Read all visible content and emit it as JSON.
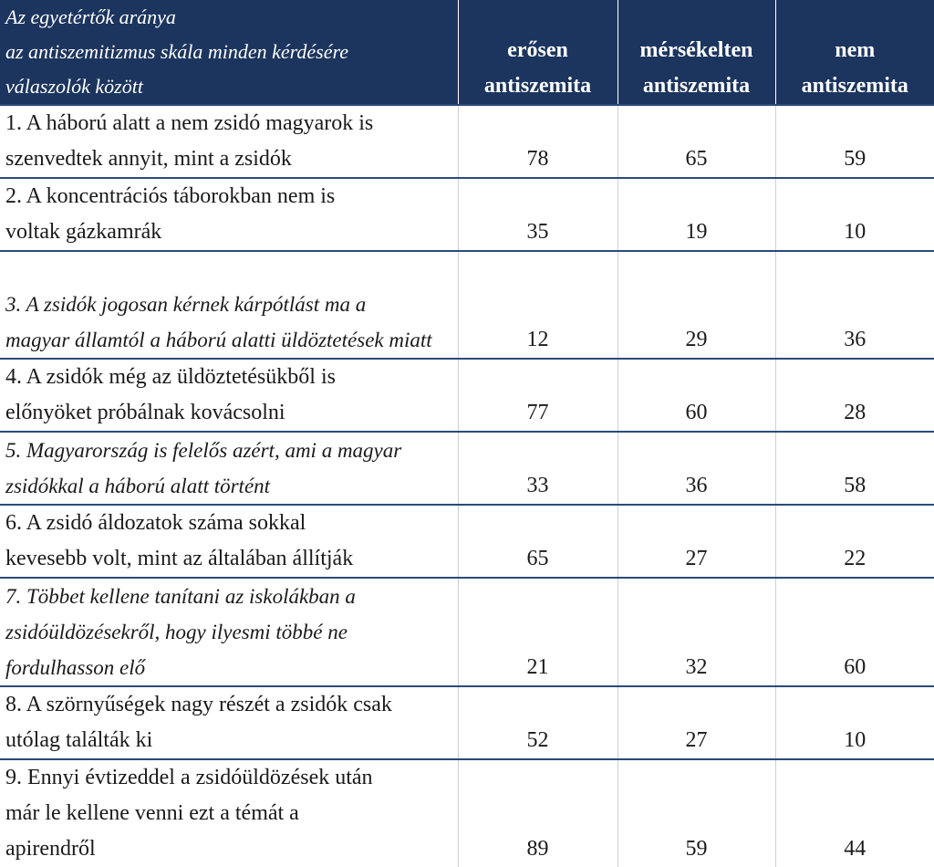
{
  "chart_data": {
    "type": "table",
    "title": "Az egyetértők aránya\naz antiszemitizmus skála minden kérdésére\nválaszolók között",
    "columns": [
      "erősen\nantiszemita",
      "mérsékelten\nantiszemita",
      "nem\nantiszemita"
    ],
    "rows": [
      {
        "label": "1. A háború alatt a nem zsidó magyarok is\nszenvedtek annyit, mint a zsidók",
        "italic": false,
        "values": [
          78,
          65,
          59
        ]
      },
      {
        "label": "2. A koncentrációs táborokban nem is\nvoltak gázkamrák",
        "italic": false,
        "values": [
          35,
          19,
          10
        ]
      },
      {
        "label": "3. A zsidók jogosan kérnek kárpótlást ma a\nmagyar államtól a háború alatti üldöztetések miatt",
        "italic": true,
        "values": [
          12,
          29,
          36
        ]
      },
      {
        "label": "4. A zsidók még az üldöztetésükből is\nelőnyöket próbálnak kovácsolni",
        "italic": false,
        "values": [
          77,
          60,
          28
        ]
      },
      {
        "label": "5. Magyarország is felelős azért, ami a magyar\nzsidókkal a háború alatt történt",
        "italic": true,
        "values": [
          33,
          36,
          58
        ]
      },
      {
        "label": "6. A zsidó áldozatok száma sokkal\nkevesebb volt, mint az általában állítják",
        "italic": false,
        "values": [
          65,
          27,
          22
        ]
      },
      {
        "label": "7. Többet kellene tanítani az iskolákban a\nzsidóüldözésekről, hogy ilyesmi többé ne\nfordulhasson elő",
        "italic": true,
        "values": [
          21,
          32,
          60
        ]
      },
      {
        "label": "8. A szörnyűségek nagy részét a zsidók csak\nutólag találták ki",
        "italic": false,
        "values": [
          52,
          27,
          10
        ]
      },
      {
        "label": "9. Ennyi évtizeddel a zsidóüldözések után\nmár le kellene venni ezt a témát a\napirendről",
        "italic": false,
        "values": [
          89,
          59,
          44
        ]
      }
    ]
  },
  "colors": {
    "header_background": "#1c355e",
    "header_text": "#ffffff",
    "row_divider": "#2b4a7a"
  }
}
